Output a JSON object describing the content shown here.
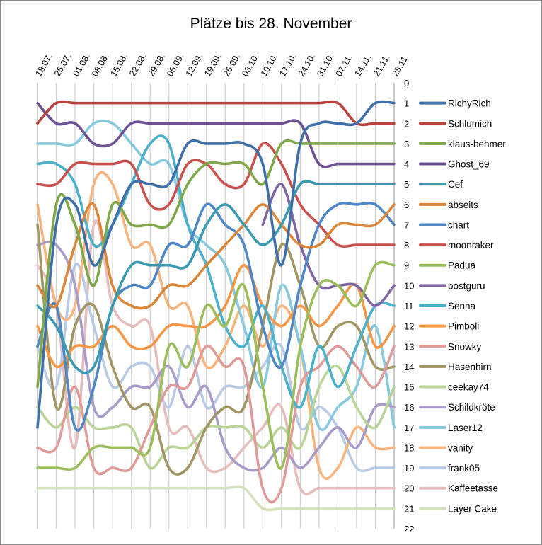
{
  "chart_data": {
    "type": "line",
    "title": "Plätze bis 28. November",
    "xlabel": "",
    "ylabel": "",
    "ylim": [
      0,
      22
    ],
    "y_inverted": true,
    "y_ticks": [
      0,
      1,
      2,
      3,
      4,
      5,
      6,
      7,
      8,
      9,
      10,
      11,
      12,
      13,
      14,
      15,
      16,
      17,
      18,
      19,
      20,
      21,
      22
    ],
    "grid": "vertical",
    "legend": "right",
    "smooth": true,
    "categories": [
      "18.07.",
      "25.07.",
      "01.08.",
      "08.08.",
      "15.08.",
      "22.08.",
      "29.08.",
      "05.09.",
      "12.09.",
      "19.09.",
      "26.09.",
      "03.10.",
      "10.10.",
      "17.10.",
      "24.10.",
      "31.10.",
      "07.11.",
      "14.11.",
      "21.11.",
      "28.11."
    ],
    "series": [
      {
        "name": "RichyRich",
        "color": "#3F6FA8",
        "values": [
          17,
          7,
          6,
          9,
          7,
          5,
          5,
          5,
          3,
          3,
          3,
          3,
          4,
          9,
          3,
          2,
          2,
          2,
          1,
          1
        ]
      },
      {
        "name": "Schlumich",
        "color": "#B9403D",
        "values": [
          2,
          1,
          1,
          1,
          1,
          1,
          1,
          1,
          1,
          1,
          1,
          1,
          1,
          1,
          1,
          1,
          1,
          2,
          2,
          2
        ]
      },
      {
        "name": "klaus-behmer",
        "color": "#7FA848",
        "values": [
          15,
          6,
          7,
          10,
          6,
          7,
          7,
          7,
          5,
          4,
          4,
          4,
          5,
          3,
          3,
          3,
          3,
          3,
          3,
          3
        ]
      },
      {
        "name": "Ghost_69",
        "color": "#6E5194",
        "values": [
          1,
          2,
          2,
          3,
          3,
          2,
          2,
          2,
          2,
          2,
          2,
          2,
          2,
          2,
          2,
          4,
          4,
          4,
          4,
          4
        ]
      },
      {
        "name": "Cef",
        "color": "#3A9AB0",
        "values": [
          11,
          12,
          14,
          14,
          11,
          9,
          9,
          9,
          9,
          7,
          6,
          7,
          8,
          7,
          5,
          5,
          5,
          5,
          5,
          5
        ]
      },
      {
        "name": "abseits",
        "color": "#DB8538",
        "values": [
          10,
          11,
          8,
          6,
          10,
          11,
          11,
          10,
          10,
          9,
          8,
          7,
          6,
          7,
          8,
          8,
          7,
          7,
          7,
          6
        ]
      },
      {
        "name": "chart",
        "color": "#4F86C6",
        "values": [
          13,
          11,
          17,
          15,
          11,
          10,
          10,
          8,
          8,
          6,
          7,
          8,
          12,
          14,
          10,
          7,
          6,
          6,
          6,
          7
        ]
      },
      {
        "name": "moonraker",
        "color": "#C9504C",
        "values": [
          5,
          5,
          4,
          4,
          4,
          4,
          6,
          6,
          4,
          4,
          5,
          5,
          3,
          4,
          6,
          7,
          8,
          8,
          8,
          8
        ]
      },
      {
        "name": "Padua",
        "color": "#9BBD5A",
        "values": [
          19,
          19,
          19,
          18,
          18,
          18,
          18,
          13,
          14,
          11,
          12,
          10,
          15,
          19,
          13,
          10,
          10,
          11,
          9,
          9
        ]
      },
      {
        "name": "postguru",
        "color": "#8064A2",
        "values": [
          null,
          null,
          null,
          null,
          null,
          null,
          null,
          null,
          null,
          null,
          null,
          null,
          7,
          5,
          8,
          10,
          10,
          10,
          11,
          10
        ]
      },
      {
        "name": "Senna",
        "color": "#4BB0CC",
        "values": [
          4,
          4,
          5,
          8,
          7,
          5,
          3,
          3,
          7,
          9,
          12,
          13,
          11,
          14,
          16,
          13,
          15,
          13,
          11,
          11
        ]
      },
      {
        "name": "Pimboli",
        "color": "#F79646",
        "values": [
          12,
          14,
          13,
          13,
          12,
          13,
          13,
          12,
          12,
          12,
          11,
          9,
          11,
          12,
          11,
          12,
          11,
          10,
          13,
          12
        ]
      },
      {
        "name": "Snowky",
        "color": "#E09A98",
        "values": [
          18,
          18,
          15,
          19,
          19,
          19,
          17,
          15,
          15,
          13,
          14,
          14,
          20,
          20,
          15,
          14,
          13,
          14,
          15,
          13
        ]
      },
      {
        "name": "Hasenhirn",
        "color": "#A09563",
        "values": [
          7,
          16,
          12,
          11,
          14,
          16,
          16,
          19,
          19,
          17,
          16,
          16,
          12,
          8,
          10,
          13,
          12,
          12,
          14,
          14
        ]
      },
      {
        "name": "ceekay74",
        "color": "#B9D496",
        "values": [
          16,
          17,
          16,
          17,
          17,
          17,
          19,
          18,
          18,
          17,
          17,
          17,
          18,
          17,
          18,
          15,
          14,
          16,
          17,
          15
        ]
      },
      {
        "name": "Schildkröte",
        "color": "#A99BC9",
        "values": [
          8,
          8,
          10,
          16,
          16,
          15,
          15,
          14,
          16,
          15,
          18,
          19,
          19,
          18,
          19,
          18,
          17,
          18,
          16,
          16
        ]
      },
      {
        "name": "Laser12",
        "color": "#86C8DD",
        "values": [
          3,
          3,
          3,
          2,
          2,
          3,
          4,
          4,
          7,
          8,
          9,
          12,
          15,
          10,
          13,
          17,
          16,
          15,
          12,
          17
        ]
      },
      {
        "name": "vanity",
        "color": "#F9B47E",
        "values": [
          6,
          11,
          11,
          5,
          5,
          8,
          8,
          11,
          11,
          14,
          13,
          11,
          13,
          11,
          13,
          19,
          19,
          17,
          18,
          18
        ]
      },
      {
        "name": "frank05",
        "color": "#B9CAE5",
        "values": [
          13,
          15,
          9,
          12,
          15,
          14,
          14,
          16,
          13,
          16,
          15,
          15,
          14,
          13,
          17,
          16,
          17,
          19,
          19,
          19
        ]
      },
      {
        "name": "Kaffeetasse",
        "color": "#E6BDBC",
        "values": [
          9,
          11,
          18,
          7,
          11,
          12,
          12,
          17,
          17,
          19,
          19,
          18,
          17,
          16,
          20,
          20,
          20,
          20,
          20,
          20
        ]
      },
      {
        "name": "Layer Cake",
        "color": "#D6E2BE",
        "values": [
          20,
          20,
          20,
          20,
          20,
          20,
          20,
          20,
          20,
          20,
          20,
          20,
          21,
          21,
          21,
          21,
          21,
          21,
          21,
          21
        ]
      }
    ]
  }
}
